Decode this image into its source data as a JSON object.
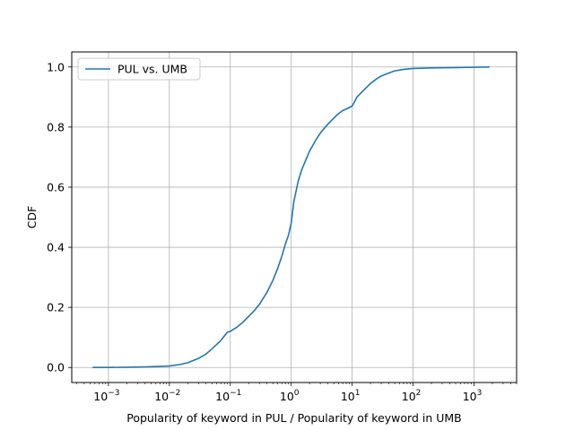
{
  "chart_data": {
    "type": "line",
    "title": "",
    "xlabel": "Popularity of keyword in PUL / Popularity of keyword in UMB",
    "ylabel": "CDF",
    "xscale": "log",
    "xlim": [
      0.00025,
      5000
    ],
    "ylim": [
      -0.05,
      1.05
    ],
    "grid": true,
    "legend_placement": "top-left",
    "x_ticks": [
      {
        "value": 0.001,
        "base": "10",
        "exp": "−3"
      },
      {
        "value": 0.01,
        "base": "10",
        "exp": "−2"
      },
      {
        "value": 0.1,
        "base": "10",
        "exp": "−1"
      },
      {
        "value": 1,
        "base": "10",
        "exp": "0"
      },
      {
        "value": 10,
        "base": "10",
        "exp": "1"
      },
      {
        "value": 100,
        "base": "10",
        "exp": "2"
      },
      {
        "value": 1000,
        "base": "10",
        "exp": "3"
      }
    ],
    "y_ticks": [
      {
        "value": 0.0,
        "label": "0.0"
      },
      {
        "value": 0.2,
        "label": "0.2"
      },
      {
        "value": 0.4,
        "label": "0.4"
      },
      {
        "value": 0.6,
        "label": "0.6"
      },
      {
        "value": 0.8,
        "label": "0.8"
      },
      {
        "value": 1.0,
        "label": "1.0"
      }
    ],
    "series": [
      {
        "name": "PUL vs. UMB",
        "color": "#1f77b4",
        "x": [
          0.00055,
          0.001,
          0.002,
          0.004,
          0.006,
          0.01,
          0.015,
          0.02,
          0.03,
          0.04,
          0.05,
          0.06,
          0.07,
          0.08,
          0.09,
          0.1,
          0.13,
          0.16,
          0.2,
          0.25,
          0.3,
          0.4,
          0.5,
          0.6,
          0.7,
          0.8,
          0.9,
          1.0,
          1.1,
          1.3,
          1.5,
          2,
          2.5,
          3,
          4,
          5,
          6,
          7,
          8,
          10,
          11,
          12,
          15,
          20,
          25,
          30,
          40,
          50,
          70,
          100,
          200,
          500,
          1000,
          1800
        ],
        "y": [
          0.0,
          0.0,
          0.001,
          0.002,
          0.003,
          0.005,
          0.01,
          0.016,
          0.03,
          0.045,
          0.062,
          0.077,
          0.09,
          0.105,
          0.118,
          0.12,
          0.135,
          0.15,
          0.17,
          0.19,
          0.21,
          0.25,
          0.29,
          0.33,
          0.37,
          0.41,
          0.44,
          0.48,
          0.55,
          0.62,
          0.66,
          0.72,
          0.755,
          0.78,
          0.81,
          0.83,
          0.845,
          0.855,
          0.86,
          0.87,
          0.885,
          0.9,
          0.92,
          0.945,
          0.96,
          0.97,
          0.98,
          0.987,
          0.992,
          0.995,
          0.997,
          0.998,
          0.999,
          1.0
        ]
      }
    ]
  }
}
